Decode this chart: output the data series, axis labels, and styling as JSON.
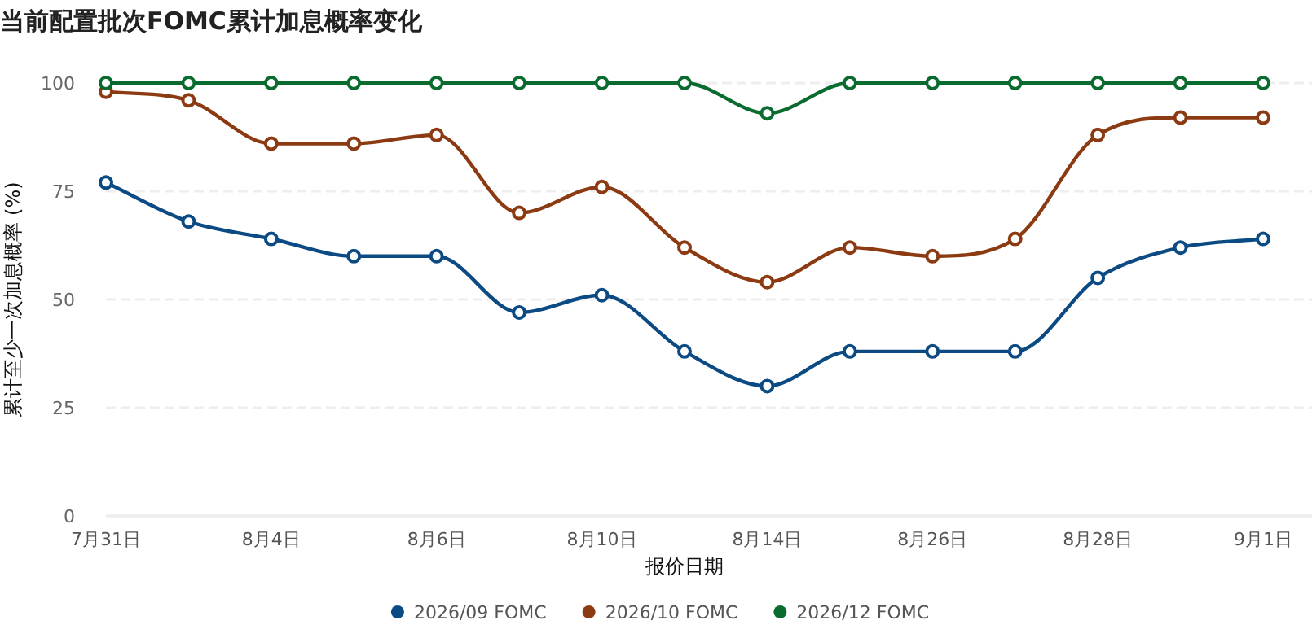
{
  "chart_data": {
    "type": "line",
    "title": "当前配置批次FOMC累计加息概率变化",
    "xlabel": "报价日期",
    "ylabel": "累计至少一次加息概率 (%)",
    "categories": [
      "7月31日",
      null,
      "8月4日",
      null,
      "8月6日",
      null,
      "8月10日",
      null,
      "8月14日",
      null,
      "8月26日",
      null,
      "8月28日",
      null,
      "9月1日"
    ],
    "series": [
      {
        "name": "2026/09 FOMC",
        "color": "#0b4a83",
        "values": [
          77,
          68,
          64,
          60,
          60,
          47,
          51,
          38,
          30,
          38,
          38,
          38,
          55,
          62,
          64
        ]
      },
      {
        "name": "2026/10 FOMC",
        "color": "#8b3a12",
        "values": [
          98,
          96,
          86,
          86,
          88,
          70,
          76,
          62,
          54,
          62,
          60,
          64,
          88,
          92,
          92
        ]
      },
      {
        "name": "2026/12 FOMC",
        "color": "#0a6b2f",
        "values": [
          100,
          100,
          100,
          100,
          100,
          100,
          100,
          100,
          93,
          100,
          100,
          100,
          100,
          100,
          100
        ]
      }
    ],
    "ylim": [
      0,
      100
    ],
    "yticks": [
      0,
      25,
      50,
      75,
      100
    ],
    "grid": "y",
    "legend": "bottom",
    "marker": "circle",
    "line_style": "solid"
  }
}
